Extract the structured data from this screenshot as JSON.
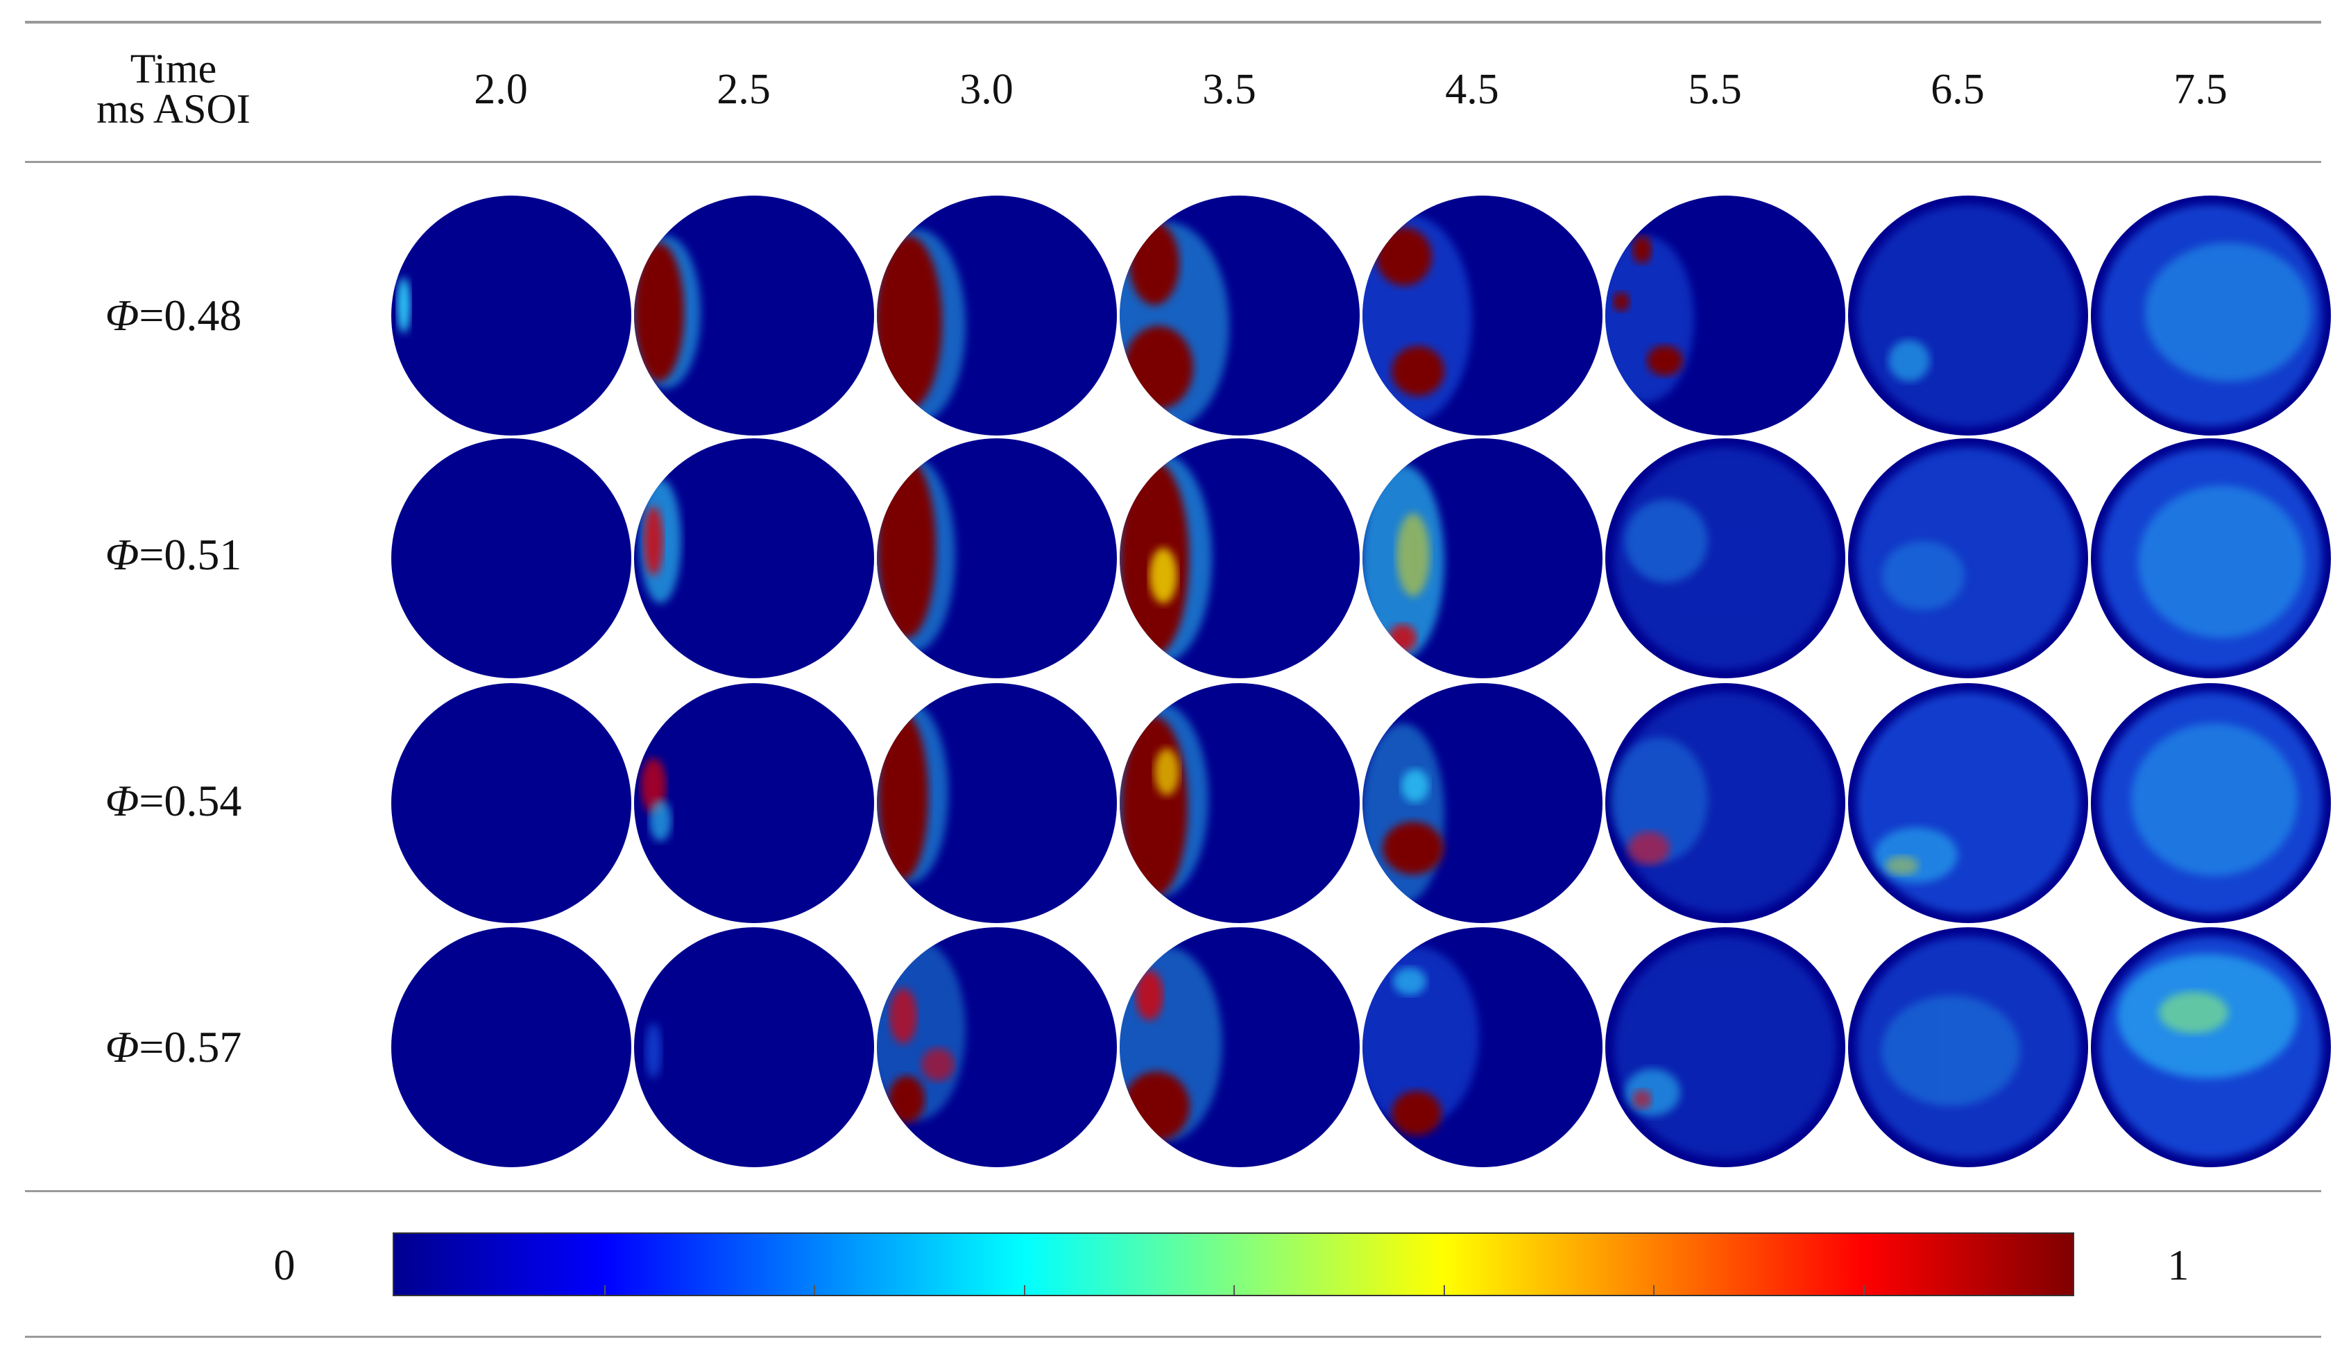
{
  "header": {
    "time_line1": "Time",
    "time_line2": "ms ASOI"
  },
  "columns": [
    "2.0",
    "2.5",
    "3.0",
    "3.5",
    "4.5",
    "5.5",
    "6.5",
    "7.5"
  ],
  "rows": [
    {
      "symbol": "Φ",
      "value": "=0.48"
    },
    {
      "symbol": "Φ",
      "value": "=0.51"
    },
    {
      "symbol": "Φ",
      "value": "=0.54"
    },
    {
      "symbol": "Φ",
      "value": "=0.57"
    }
  ],
  "colorbar": {
    "min_label": "0",
    "max_label": "1",
    "colormap": "jet",
    "colors": [
      "#00008f",
      "#0000ff",
      "#0080ff",
      "#00ffff",
      "#80ff80",
      "#ffff00",
      "#ff8000",
      "#ff0000",
      "#800000"
    ]
  },
  "panel_background_color": "#00008f"
}
